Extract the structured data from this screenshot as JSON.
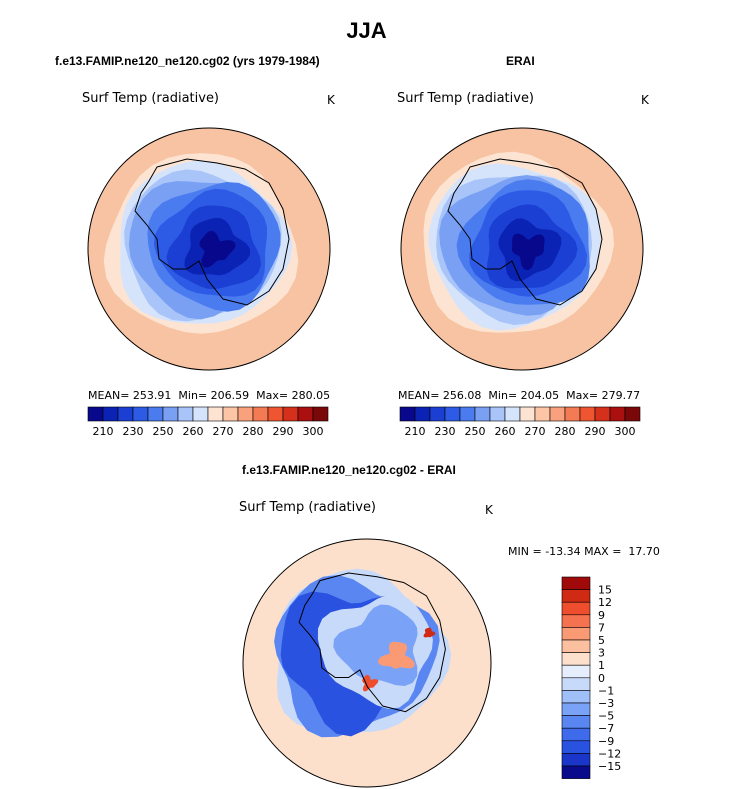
{
  "figure": {
    "title": "JJA"
  },
  "palette": {
    "temp": [
      "#08088c",
      "#0a23b4",
      "#1a3fd2",
      "#2d5be6",
      "#4a7cf0",
      "#7aa0f4",
      "#a8c4f8",
      "#d6e4fb",
      "#fde4d2",
      "#fcc6a6",
      "#f9a07c",
      "#f47a54",
      "#ee5530",
      "#d4301c",
      "#aa1010",
      "#7a0808"
    ],
    "diff": [
      "#0a0a8c",
      "#1a36c8",
      "#2a52e0",
      "#3e6aec",
      "#5a86f2",
      "#7aa2f6",
      "#9fbff8",
      "#c8dafa",
      "#e6eefc",
      "#fde0cc",
      "#fcc0a0",
      "#f99a74",
      "#f47250",
      "#ee4e2e",
      "#d02a14",
      "#a00a0a"
    ],
    "ocean": "#f7c3a2",
    "ocean_inner": "#fde0cc",
    "coast": "#000000"
  },
  "chart_data": [
    {
      "type": "heatmap",
      "panel": "model",
      "title": "f.e13.FAMIP.ne120_ne120.cg02 (yrs 1979-1984)",
      "variable": "Surf Temp (radiative)",
      "units": "K",
      "mean_label": "MEAN=",
      "mean": "253.91",
      "min_label": "Min=",
      "min": "206.59",
      "max_label": "Max=",
      "max": "280.05",
      "colorbar": {
        "orientation": "horizontal",
        "tick_labels": [
          "210",
          "230",
          "250",
          "260",
          "270",
          "280",
          "290",
          "300"
        ]
      }
    },
    {
      "type": "heatmap",
      "panel": "obs",
      "title": "ERAI",
      "variable": "Surf Temp (radiative)",
      "units": "K",
      "mean_label": "MEAN=",
      "mean": "256.08",
      "min_label": "Min=",
      "min": "204.05",
      "max_label": "Max=",
      "max": "279.77",
      "colorbar": {
        "orientation": "horizontal",
        "tick_labels": [
          "210",
          "230",
          "250",
          "260",
          "270",
          "280",
          "290",
          "300"
        ]
      }
    },
    {
      "type": "heatmap",
      "panel": "difference",
      "title": "f.e13.FAMIP.ne120_ne120.cg02 - ERAI",
      "variable": "Surf Temp (radiative)",
      "units": "K",
      "min_label": "MIN =",
      "min": "-13.34",
      "max_label": "MAX =",
      "max": "17.70",
      "colorbar": {
        "orientation": "vertical",
        "tick_labels": [
          "15",
          "12",
          "9",
          "7",
          "5",
          "3",
          "1",
          "0",
          "−1",
          "−3",
          "−5",
          "−7",
          "−9",
          "−12",
          "−15"
        ]
      }
    }
  ]
}
